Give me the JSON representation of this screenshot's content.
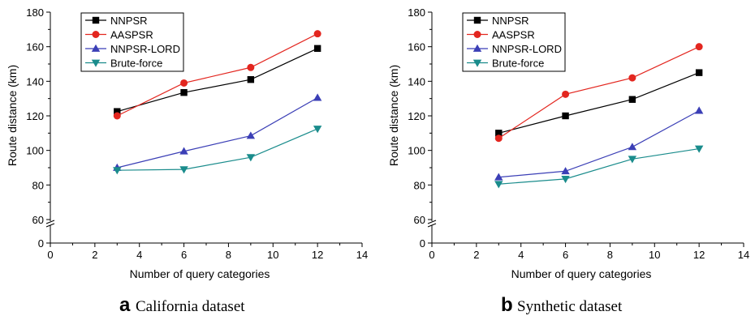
{
  "chart_data": [
    {
      "type": "line",
      "panel_letter": "a",
      "caption": "California dataset",
      "xlabel": "Number of query categories",
      "ylabel": "Route distance (km)",
      "xlim": [
        0,
        14
      ],
      "xticks": [
        0,
        2,
        4,
        6,
        8,
        10,
        12,
        14
      ],
      "yticks": [
        0,
        60,
        80,
        100,
        120,
        140,
        160,
        180
      ],
      "y_axis_break": [
        0,
        60
      ],
      "legend_position": "top-left",
      "x": [
        3,
        6,
        9,
        12
      ],
      "series": [
        {
          "name": "NNPSR",
          "color": "#000000",
          "marker": "square",
          "values": [
            122.5,
            133.5,
            141,
            159
          ]
        },
        {
          "name": "AASPSR",
          "color": "#e3261f",
          "marker": "circle",
          "values": [
            120,
            139,
            148,
            167.5
          ]
        },
        {
          "name": "NNPSR-LORD",
          "color": "#3b3fb6",
          "marker": "triangle-up",
          "values": [
            90,
            99.5,
            108.5,
            130.5
          ]
        },
        {
          "name": "Brute-force",
          "color": "#1a8c8c",
          "marker": "triangle-down",
          "values": [
            88.5,
            89,
            96,
            112.5
          ]
        }
      ]
    },
    {
      "type": "line",
      "panel_letter": "b",
      "caption": "Synthetic dataset",
      "xlabel": "Number of query categories",
      "ylabel": "Route distance (km)",
      "xlim": [
        0,
        14
      ],
      "xticks": [
        0,
        2,
        4,
        6,
        8,
        10,
        12,
        14
      ],
      "yticks": [
        0,
        60,
        80,
        100,
        120,
        140,
        160,
        180
      ],
      "y_axis_break": [
        0,
        60
      ],
      "legend_position": "top-left",
      "x": [
        3,
        6,
        9,
        12
      ],
      "series": [
        {
          "name": "NNPSR",
          "color": "#000000",
          "marker": "square",
          "values": [
            110,
            120,
            129.5,
            145
          ]
        },
        {
          "name": "AASPSR",
          "color": "#e3261f",
          "marker": "circle",
          "values": [
            107,
            132.5,
            142,
            160
          ]
        },
        {
          "name": "NNPSR-LORD",
          "color": "#3b3fb6",
          "marker": "triangle-up",
          "values": [
            84.5,
            88,
            102,
            123
          ]
        },
        {
          "name": "Brute-force",
          "color": "#1a8c8c",
          "marker": "triangle-down",
          "values": [
            80.5,
            83.5,
            95,
            101
          ]
        }
      ]
    }
  ]
}
